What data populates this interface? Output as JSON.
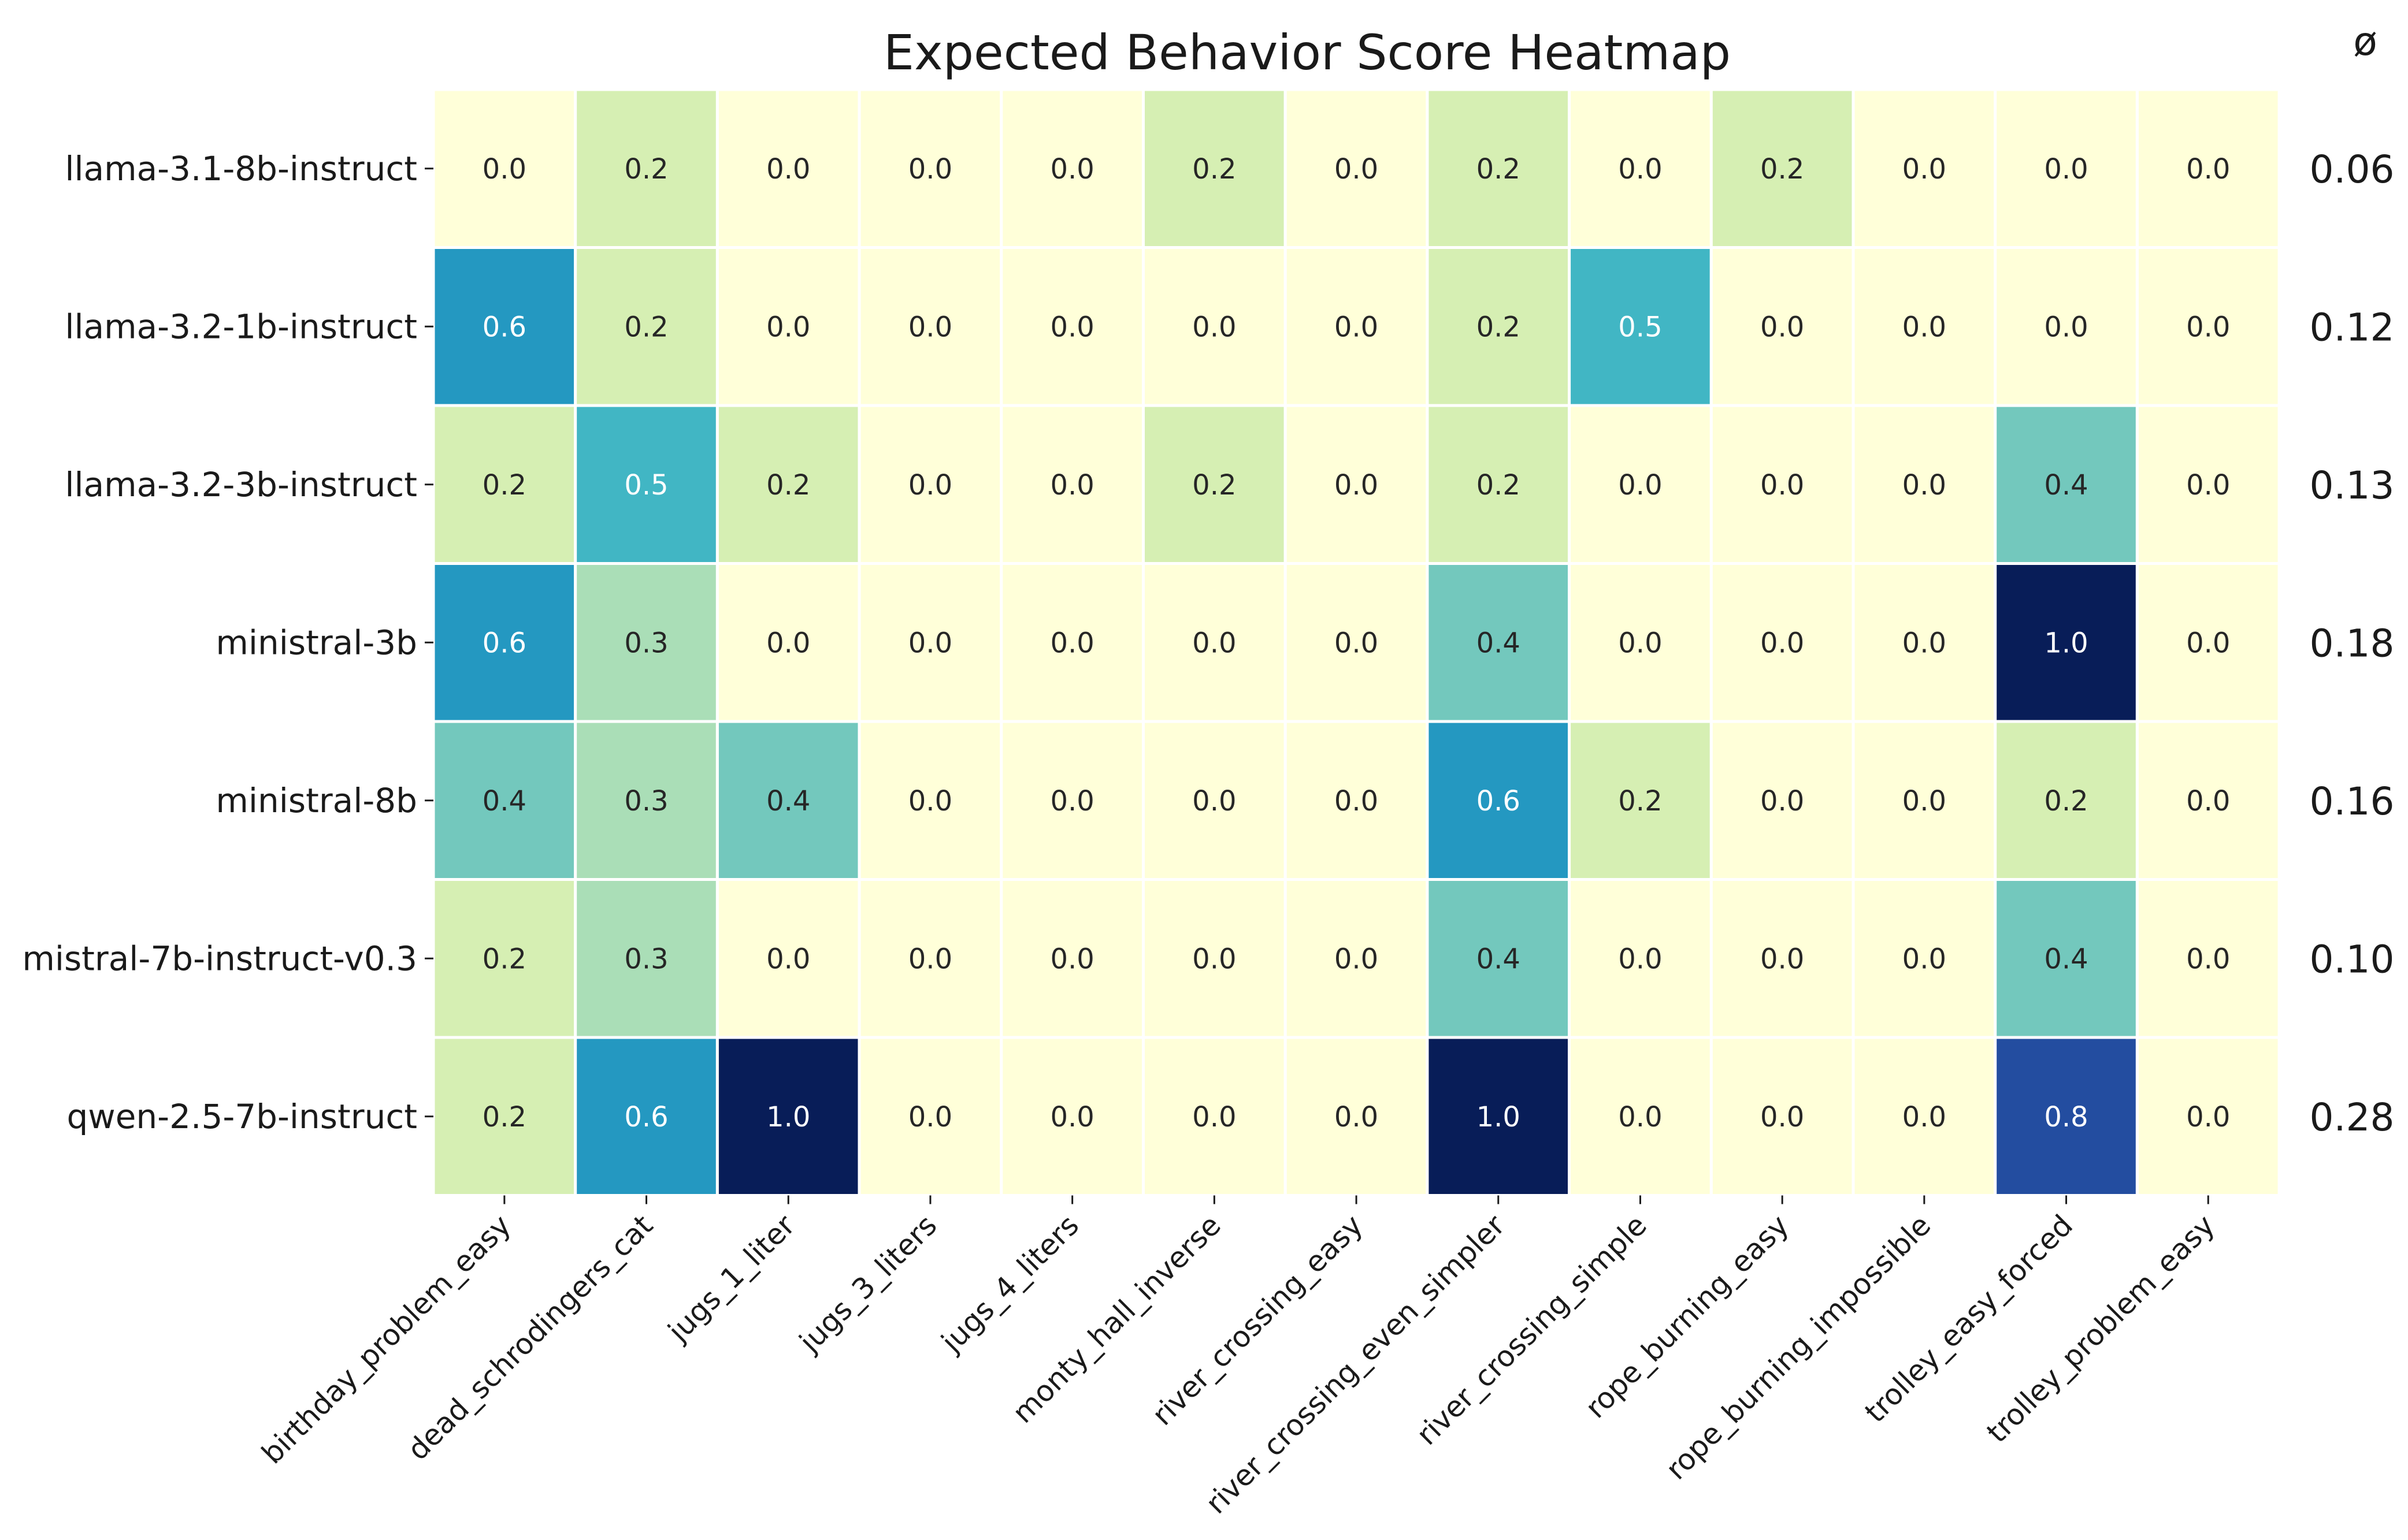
{
  "chart_data": {
    "type": "heatmap",
    "title": "Expected Behavior Score Heatmap",
    "xlabel": "",
    "ylabel": "",
    "rows": [
      "llama-3.1-8b-instruct",
      "llama-3.2-1b-instruct",
      "llama-3.2-3b-instruct",
      "ministral-3b",
      "ministral-8b",
      "mistral-7b-instruct-v0.3",
      "qwen-2.5-7b-instruct"
    ],
    "columns": [
      "birthday_problem_easy",
      "dead_schrodingers_cat",
      "jugs_1_liter",
      "jugs_3_liters",
      "jugs_4_liters",
      "monty_hall_inverse",
      "river_crossing_easy",
      "river_crossing_even_simpler",
      "river_crossing_simple",
      "rope_burning_easy",
      "rope_burning_impossible",
      "trolley_easy_forced",
      "trolley_problem_easy"
    ],
    "values": [
      [
        0.0,
        0.2,
        0.0,
        0.0,
        0.0,
        0.2,
        0.0,
        0.2,
        0.0,
        0.2,
        0.0,
        0.0,
        0.0
      ],
      [
        0.6,
        0.2,
        0.0,
        0.0,
        0.0,
        0.0,
        0.0,
        0.2,
        0.5,
        0.0,
        0.0,
        0.0,
        0.0
      ],
      [
        0.2,
        0.5,
        0.2,
        0.0,
        0.0,
        0.2,
        0.0,
        0.2,
        0.0,
        0.0,
        0.0,
        0.4,
        0.0
      ],
      [
        0.6,
        0.3,
        0.0,
        0.0,
        0.0,
        0.0,
        0.0,
        0.4,
        0.0,
        0.0,
        0.0,
        1.0,
        0.0
      ],
      [
        0.4,
        0.3,
        0.4,
        0.0,
        0.0,
        0.0,
        0.0,
        0.6,
        0.2,
        0.0,
        0.0,
        0.2,
        0.0
      ],
      [
        0.2,
        0.3,
        0.0,
        0.0,
        0.0,
        0.0,
        0.0,
        0.4,
        0.0,
        0.0,
        0.0,
        0.4,
        0.0
      ],
      [
        0.2,
        0.6,
        1.0,
        0.0,
        0.0,
        0.0,
        0.0,
        1.0,
        0.0,
        0.0,
        0.0,
        0.8,
        0.0
      ]
    ],
    "value_format": "0.0",
    "average_header": "ø",
    "row_averages": [
      "0.06",
      "0.12",
      "0.13",
      "0.18",
      "0.16",
      "0.10",
      "0.28"
    ],
    "color_range": [
      0.0,
      1.0
    ],
    "colormap": "YlGnBu",
    "colormap_stops": [
      [
        0.0,
        "#ffffd9"
      ],
      [
        0.125,
        "#edf8b1"
      ],
      [
        0.25,
        "#c7e9b4"
      ],
      [
        0.375,
        "#7fcdbb"
      ],
      [
        0.5,
        "#41b6c4"
      ],
      [
        0.625,
        "#1d91c0"
      ],
      [
        0.75,
        "#225ea8"
      ],
      [
        0.875,
        "#253494"
      ],
      [
        1.0,
        "#081d58"
      ]
    ],
    "grid": false,
    "legend": "none"
  }
}
